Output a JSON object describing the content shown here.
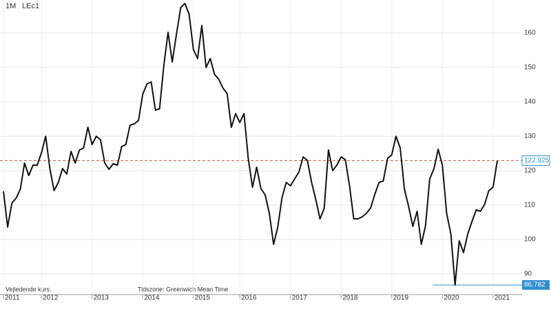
{
  "chart_data": {
    "type": "line",
    "interval": "1M",
    "symbol": "LEc1",
    "footnote": "Vejledende kurs.",
    "timezone": "Tidszone: Greenwich Mean Time",
    "categories": [
      "2011",
      null,
      null,
      null,
      null,
      null,
      null,
      null,
      null,
      "2012",
      null,
      null,
      null,
      null,
      null,
      null,
      null,
      null,
      null,
      null,
      null,
      "2013",
      null,
      null,
      null,
      null,
      null,
      null,
      null,
      null,
      null,
      null,
      null,
      "2014",
      null,
      null,
      null,
      null,
      null,
      null,
      null,
      null,
      null,
      null,
      null,
      "2015",
      null,
      null,
      null,
      null,
      null,
      null,
      null,
      null,
      null,
      null,
      "2016",
      null,
      null,
      null,
      null,
      null,
      null,
      null,
      null,
      null,
      null,
      null,
      "2017",
      null,
      null,
      null,
      null,
      null,
      null,
      null,
      null,
      null,
      null,
      null,
      "2018",
      null,
      null,
      null,
      null,
      null,
      null,
      null,
      null,
      null,
      null,
      null,
      "2019",
      null,
      null,
      null,
      null,
      null,
      null,
      null,
      null,
      null,
      null,
      null,
      "2020",
      null,
      null,
      null,
      null,
      null,
      null,
      null,
      null,
      null,
      null,
      null,
      "2021",
      null
    ],
    "series": [
      {
        "color": "#111111",
        "values": [
          114,
          103.6,
          110.6,
          112,
          114.6,
          122.2,
          118.6,
          121.6,
          121.6,
          125.2,
          130,
          120.6,
          114.2,
          116.6,
          120.6,
          119,
          125.6,
          122.2,
          126,
          126.6,
          132.6,
          127.6,
          130,
          129,
          122.2,
          120.4,
          122,
          121.6,
          127,
          127.6,
          133.2,
          133.6,
          134.6,
          142.2,
          145.2,
          145.8,
          137.6,
          138,
          150.6,
          160.2,
          151.6,
          159.8,
          167.4,
          168.6,
          165.4,
          155.2,
          152.6,
          162.2,
          150,
          152.6,
          148,
          146.6,
          144,
          142.4,
          132.6,
          136.6,
          134,
          136.6,
          123.6,
          115.2,
          121,
          114.8,
          113,
          107.6,
          98.6,
          103.6,
          112.2,
          116.6,
          115.6,
          117.6,
          119.6,
          124,
          123,
          116.6,
          111.6,
          106,
          109,
          126,
          120,
          121.6,
          124,
          123.2,
          115.6,
          106,
          106,
          106.6,
          107.6,
          109.2,
          113.2,
          116.6,
          117,
          123.6,
          124.6,
          130,
          126.6,
          114.6,
          109.6,
          103.8,
          108.2,
          98.6,
          104,
          117.6,
          120.6,
          126.2,
          121.6,
          107.6,
          101.6,
          86.782,
          99.6,
          96.2,
          101.6,
          105.2,
          108.6,
          108.2,
          110.2,
          114.2,
          115.2,
          122.925
        ]
      }
    ],
    "last_price": 122.925,
    "last_price_color": "#c0504d",
    "low_price": 86.782,
    "low_price_color": "#2f8fcf",
    "ylim": [
      84.6,
      169.6
    ],
    "yticks": [
      90,
      100,
      110,
      120,
      130,
      140,
      150,
      160
    ],
    "grid": true
  }
}
